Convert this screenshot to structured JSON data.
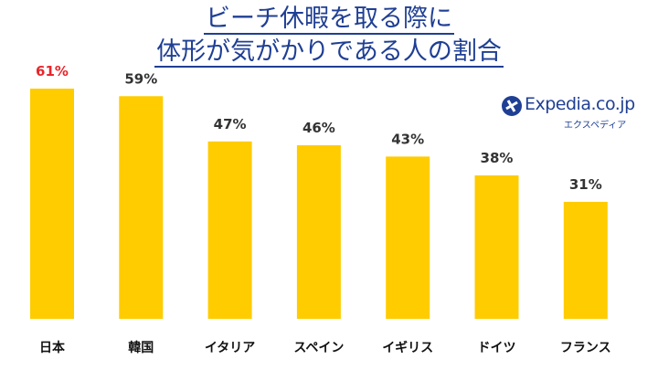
{
  "title_line1": "ビーチ休暇を取る際に",
  "title_line2": "体形が気がかりである人の割合",
  "logo": {
    "brand": "Expedia.co.jp",
    "sub": "エクスペディア",
    "icon": "globe-plane-icon"
  },
  "colors": {
    "bar": "#FFCC00",
    "highlight_label": "#E8262B",
    "label": "#333333",
    "title": "#1F3F94"
  },
  "chart_data": {
    "type": "bar",
    "title": "ビーチ休暇を取る際に 体形が気がかりである人の割合",
    "categories": [
      "日本",
      "韓国",
      "イタリア",
      "スペイン",
      "イギリス",
      "ドイツ",
      "フランス"
    ],
    "values": [
      61,
      59,
      47,
      46,
      43,
      38,
      31
    ],
    "value_labels": [
      "61%",
      "59%",
      "47%",
      "46%",
      "43%",
      "38%",
      "31%"
    ],
    "highlight_index": 0,
    "xlabel": "",
    "ylabel": "",
    "ylim": [
      0,
      61
    ],
    "grid": false,
    "legend": "none"
  }
}
